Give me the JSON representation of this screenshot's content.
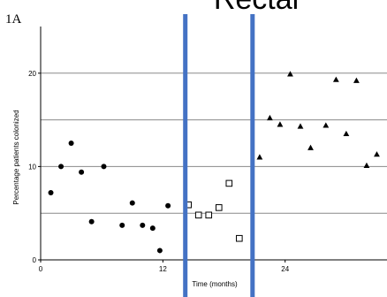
{
  "chart_data": {
    "type": "scatter",
    "panel_label": "1A",
    "overlay_title": "Rectal",
    "xlabel": "Time (months)",
    "ylabel": "Percentage patients colonized",
    "xlim": [
      0,
      34
    ],
    "ylim": [
      0,
      25
    ],
    "x_ticks": [
      0,
      12,
      24
    ],
    "y_ticks": [
      0,
      10,
      20
    ],
    "gridlines_y": [
      5,
      10,
      15,
      20
    ],
    "series": [
      {
        "marker": "circle-filled",
        "points": [
          [
            1,
            7.2
          ],
          [
            2,
            10
          ],
          [
            3,
            12.5
          ],
          [
            4,
            9.4
          ],
          [
            5,
            4.1
          ],
          [
            6.2,
            10
          ],
          [
            8,
            3.7
          ],
          [
            9,
            6.1
          ],
          [
            10,
            3.7
          ],
          [
            11,
            3.4
          ],
          [
            11.7,
            1
          ],
          [
            12.5,
            5.8
          ]
        ]
      },
      {
        "marker": "square-open",
        "points": [
          [
            14.5,
            5.9
          ],
          [
            15.5,
            4.8
          ],
          [
            16.5,
            4.8
          ],
          [
            17.5,
            5.6
          ],
          [
            18.5,
            8.2
          ],
          [
            19.5,
            2.3
          ]
        ]
      },
      {
        "marker": "triangle-filled",
        "points": [
          [
            21.5,
            11
          ],
          [
            22.5,
            15.2
          ],
          [
            23.5,
            14.5
          ],
          [
            24.5,
            19.9
          ],
          [
            25.5,
            14.3
          ],
          [
            26.5,
            12
          ],
          [
            28,
            14.4
          ],
          [
            29,
            19.3
          ],
          [
            30,
            13.5
          ],
          [
            31,
            19.2
          ],
          [
            32,
            10.1
          ],
          [
            33,
            11.3
          ]
        ]
      }
    ],
    "vertical_markers": [
      {
        "x": 14.2,
        "color": "#4472C4"
      },
      {
        "x": 20.8,
        "color": "#4472C4"
      }
    ]
  }
}
